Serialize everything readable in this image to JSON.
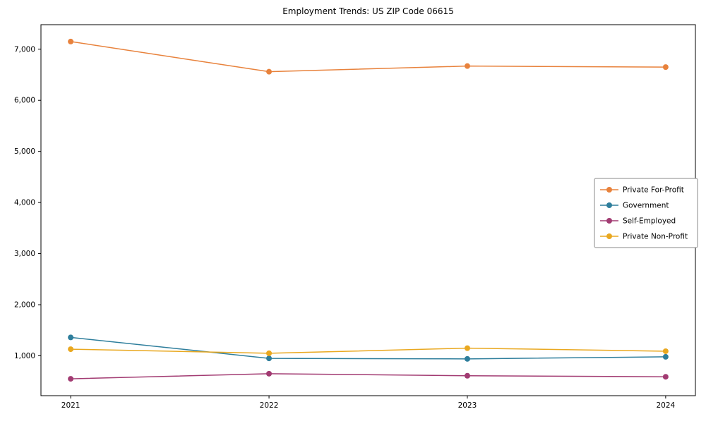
{
  "chart_data": {
    "type": "line",
    "title": "Employment Trends: US ZIP Code 06615",
    "xlabel": "",
    "ylabel": "",
    "x": [
      2021,
      2022,
      2023,
      2024
    ],
    "xlim": [
      2020.85,
      2024.15
    ],
    "ylim": [
      220,
      7480
    ],
    "yticks": [
      1000,
      2000,
      3000,
      4000,
      5000,
      6000,
      7000
    ],
    "grid": false,
    "legend_position": "center-right",
    "axis_color": "#000000",
    "background_color": "#ffffff",
    "series": [
      {
        "name": "Private For-Profit",
        "color": "#e8823c",
        "values": [
          7150,
          6560,
          6670,
          6650
        ]
      },
      {
        "name": "Government",
        "color": "#2e7e9c",
        "values": [
          1360,
          950,
          940,
          980
        ]
      },
      {
        "name": "Self-Employed",
        "color": "#a23b72",
        "values": [
          550,
          650,
          610,
          590
        ]
      },
      {
        "name": "Private Non-Profit",
        "color": "#e9a820",
        "values": [
          1130,
          1050,
          1150,
          1090
        ]
      }
    ]
  }
}
